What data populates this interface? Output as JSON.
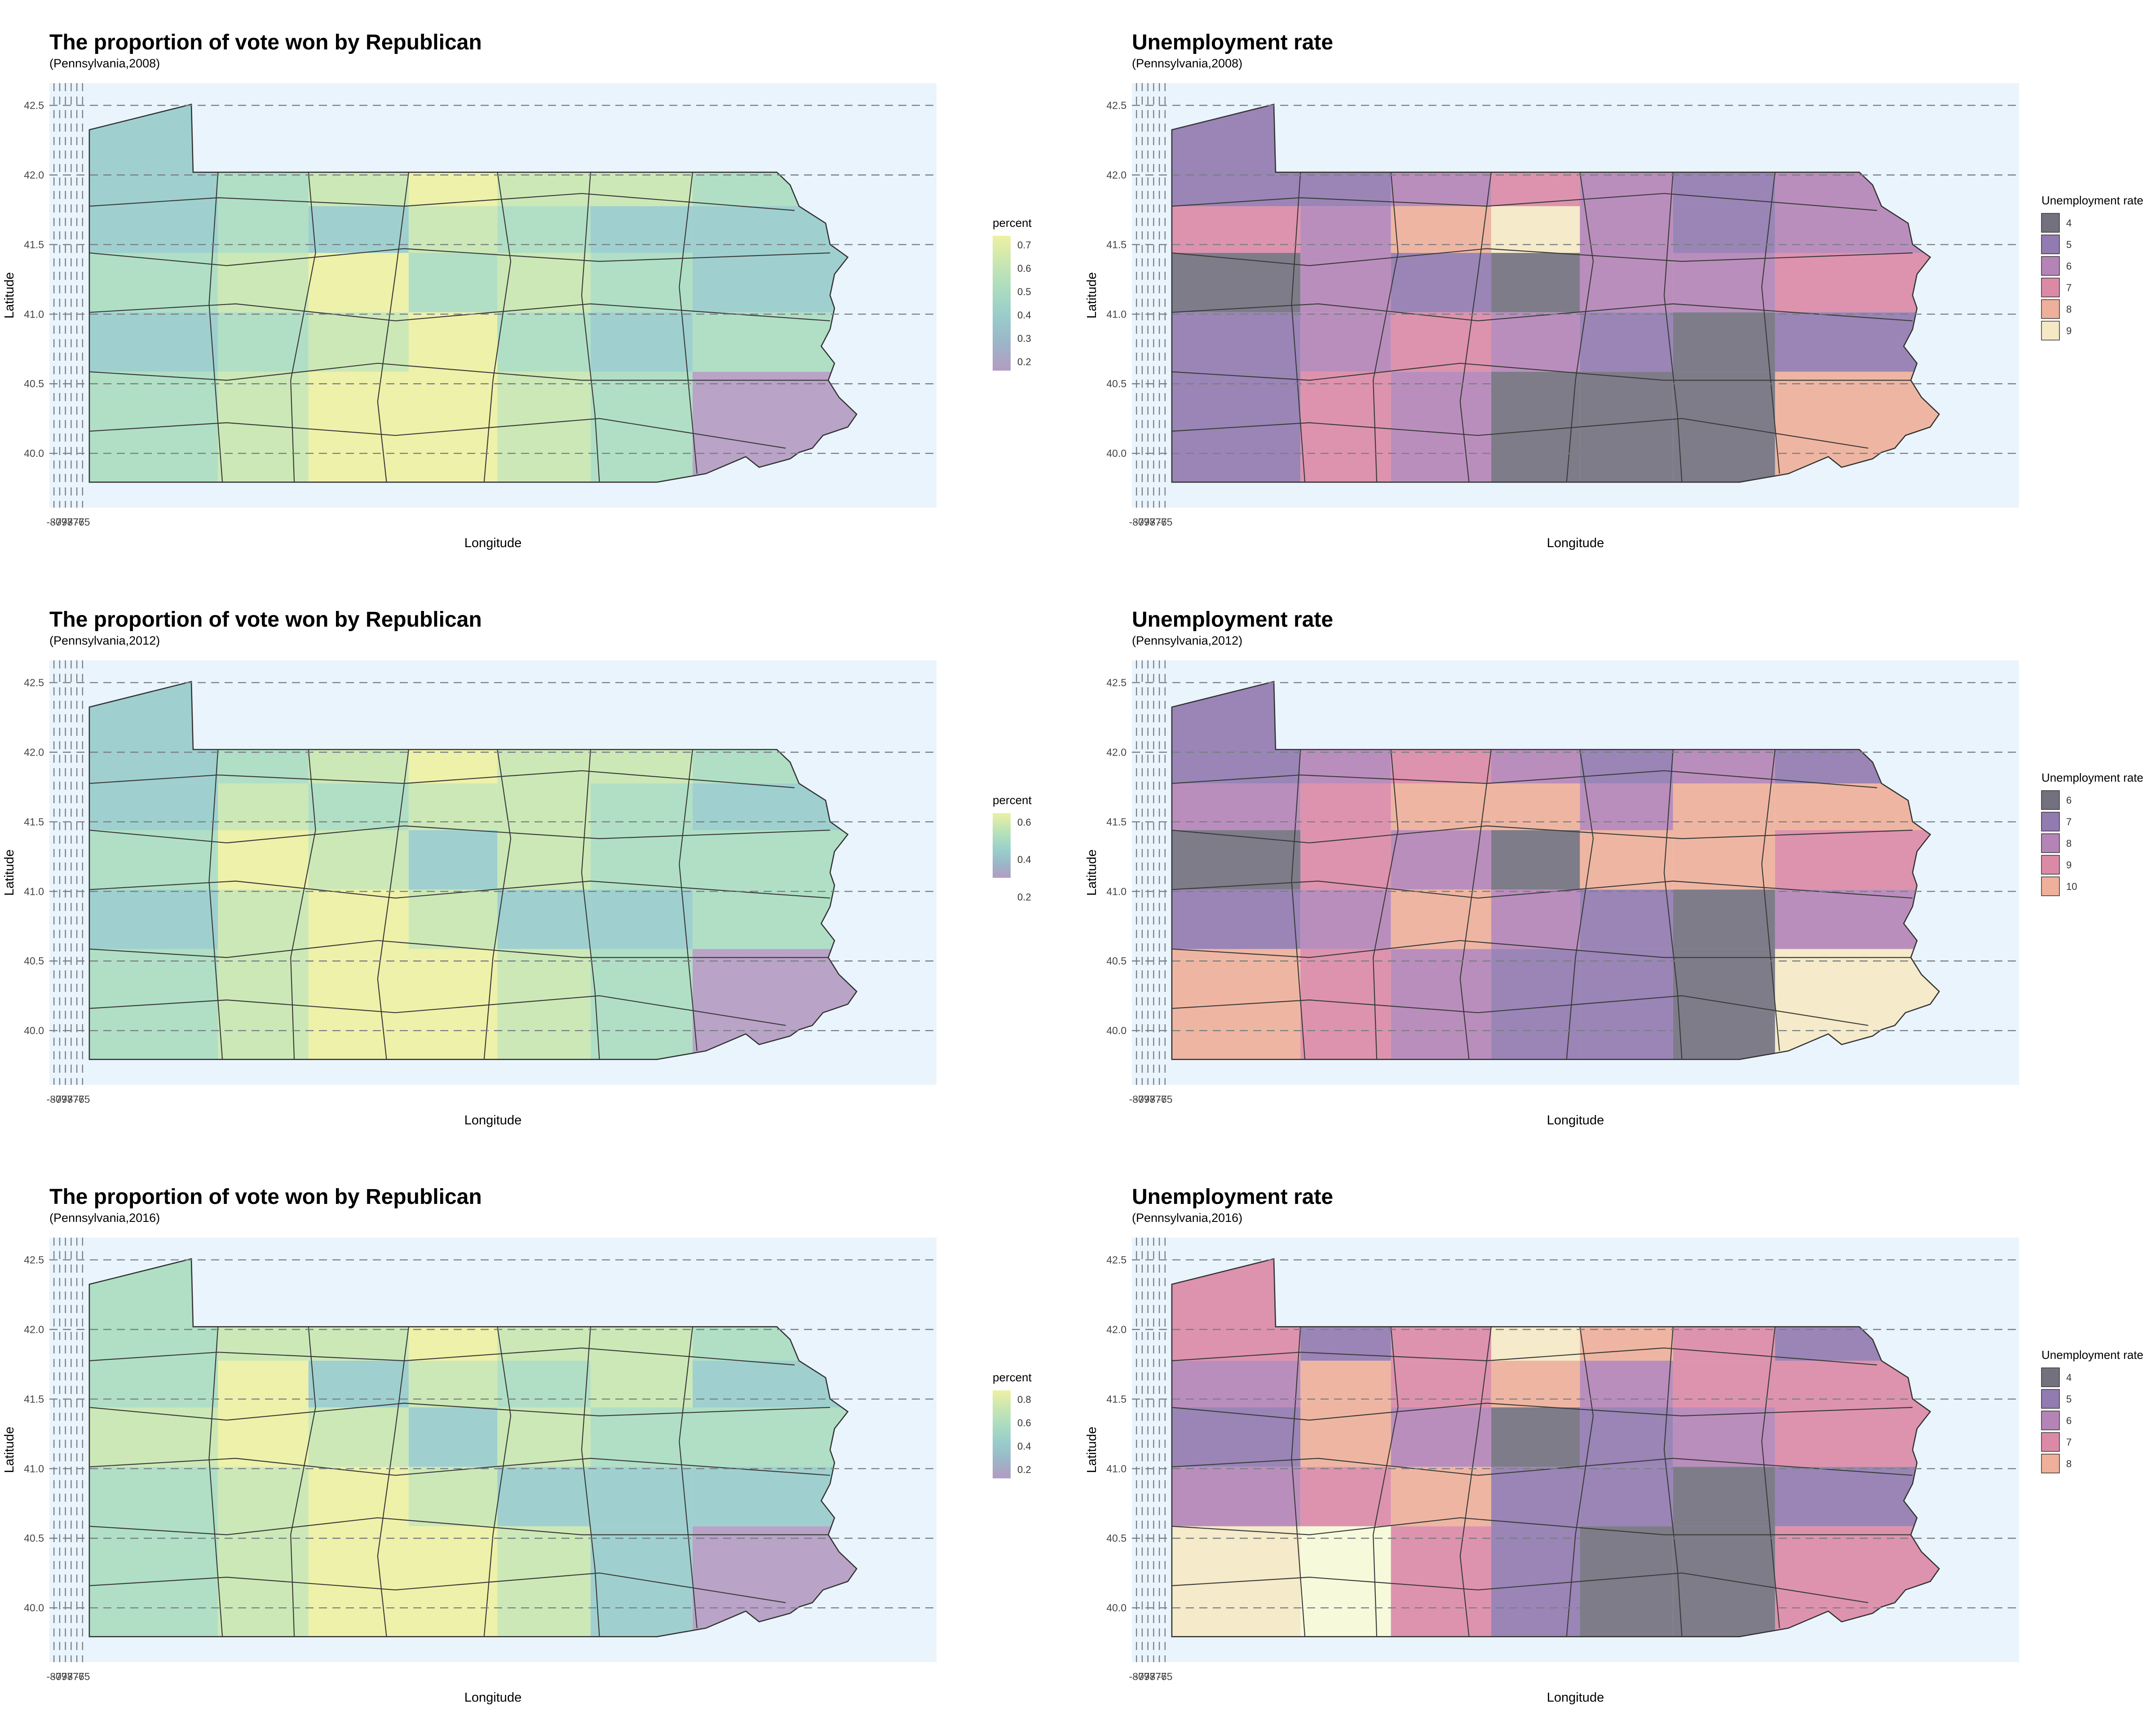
{
  "panels": [
    {
      "title": "The proportion of vote won by Republican",
      "subtitle": "(Pennsylvania,2008)",
      "xlabel": "Longitude",
      "ylabel": "Latitude",
      "legend_title": "percent",
      "legend_type": "continuous",
      "legend_labels": [
        "0.7",
        "0.6",
        "0.5",
        "0.4",
        "0.3",
        "0.2"
      ]
    },
    {
      "title": "Unemployment rate",
      "subtitle": "(Pennsylvania,2008)",
      "xlabel": "Longitude",
      "ylabel": "Latitude",
      "legend_title": "Unemployment rate",
      "legend_type": "discrete",
      "legend_labels": [
        "4",
        "5",
        "6",
        "7",
        "8",
        "9"
      ]
    },
    {
      "title": "The proportion of vote won by Republican",
      "subtitle": "(Pennsylvania,2012)",
      "xlabel": "Longitude",
      "ylabel": "Latitude",
      "legend_title": "percent",
      "legend_type": "continuous",
      "legend_labels": [
        "0.6",
        "0.4",
        "0.2"
      ]
    },
    {
      "title": "Unemployment rate",
      "subtitle": "(Pennsylvania,2012)",
      "xlabel": "Longitude",
      "ylabel": "Latitude",
      "legend_title": "Unemployment rate",
      "legend_type": "discrete",
      "legend_labels": [
        "6",
        "7",
        "8",
        "9",
        "10"
      ]
    },
    {
      "title": "The proportion of vote won by Republican",
      "subtitle": "(Pennsylvania,2016)",
      "xlabel": "Longitude",
      "ylabel": "Latitude",
      "legend_title": "percent",
      "legend_type": "continuous",
      "legend_labels": [
        "0.8",
        "0.6",
        "0.4",
        "0.2"
      ]
    },
    {
      "title": "Unemployment rate",
      "subtitle": "(Pennsylvania,2016)",
      "xlabel": "Longitude",
      "ylabel": "Latitude",
      "legend_title": "Unemployment rate",
      "legend_type": "discrete",
      "legend_labels": [
        "4",
        "5",
        "6",
        "7",
        "8"
      ]
    }
  ],
  "axes": {
    "x_ticks": [
      "-80",
      "-79",
      "-78",
      "-77",
      "-76",
      "-75"
    ],
    "y_ticks": [
      "42.5",
      "42.0",
      "41.5",
      "41.0",
      "40.5",
      "40.0"
    ]
  },
  "colors": {
    "panel_background": "#eaf4fd",
    "grid": "#7a7f85",
    "percent_scale": [
      "#eef0a2",
      "#c9e6b1",
      "#aadcc0",
      "#98cccb",
      "#9cb5c8",
      "#b49bc2"
    ],
    "unemployment_scale": [
      "#74717f",
      "#927bb0",
      "#b584b6",
      "#db8aa6",
      "#eeb09a",
      "#f5e8c4",
      "#f6fad8"
    ]
  }
}
